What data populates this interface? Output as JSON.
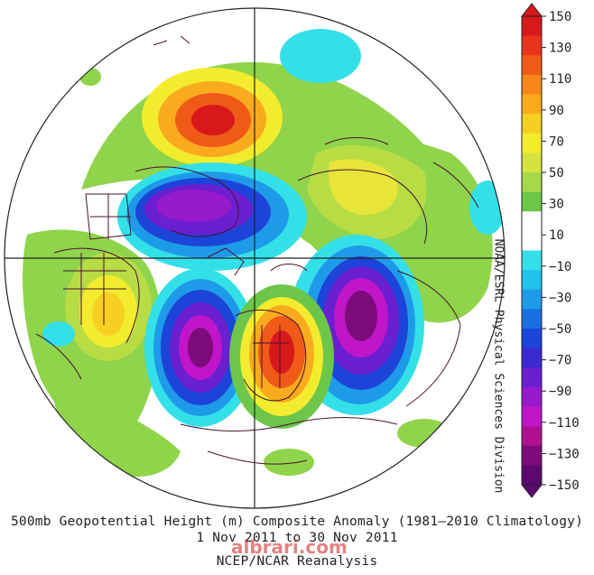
{
  "title_line1": "500mb Geopotential Height (m) Composite Anomaly (1981–2010 Climatology)",
  "title_line2": "1 Nov 2011 to 30 Nov 2011",
  "title_line3": "NCEP/NCAR Reanalysis",
  "credit": "NOAA/ESRL Physical Sciences Division",
  "watermark": "albrari.com",
  "colorbar": {
    "labels": [
      "150",
      "130",
      "110",
      "90",
      "70",
      "50",
      "30",
      "10",
      "−10",
      "−30",
      "−50",
      "−70",
      "−90",
      "−110",
      "−130",
      "−150"
    ],
    "colors": [
      "#d7191c",
      "#e8341c",
      "#f05a17",
      "#f7861a",
      "#f9ab1d",
      "#f7cf22",
      "#f3ec2e",
      "#d4e33f",
      "#a6d84a",
      "#6cc64a",
      "#ffffff",
      "#ffffff",
      "#34e0e8",
      "#22c2ec",
      "#1e9be8",
      "#1a6fe0",
      "#1d44d8",
      "#3a2ad0",
      "#6a1fd0",
      "#9619cc",
      "#c015c8",
      "#b0108f",
      "#7d0b7a",
      "#5c0870"
    ]
  },
  "anomaly_centers": [
    {
      "label": "positive anomaly over North Pacific / Aleutians",
      "sign": "positive"
    },
    {
      "label": "negative anomaly over Arctic Canada",
      "sign": "negative"
    },
    {
      "label": "negative anomaly over North Atlantic",
      "sign": "negative"
    },
    {
      "label": "positive anomaly over Europe",
      "sign": "positive"
    },
    {
      "label": "negative anomaly over Western Siberia",
      "sign": "negative"
    }
  ]
}
